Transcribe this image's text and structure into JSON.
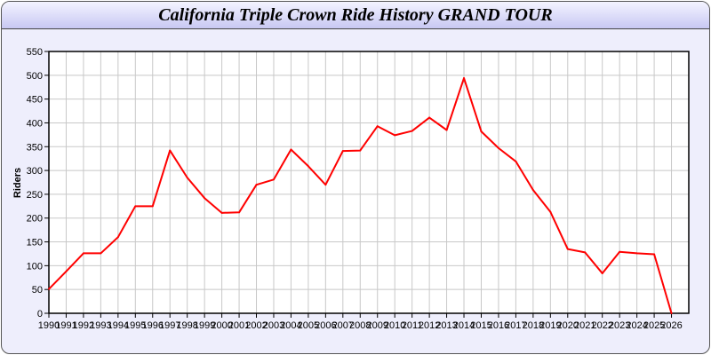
{
  "chart_data": {
    "type": "line",
    "title": "California Triple Crown Ride History GRAND TOUR",
    "xlabel": "",
    "ylabel": "Riders",
    "xlim": [
      1990,
      2027
    ],
    "ylim": [
      0,
      550
    ],
    "grid": true,
    "yticks": [
      0,
      50,
      100,
      150,
      200,
      250,
      300,
      350,
      400,
      450,
      500,
      550
    ],
    "x": [
      1990,
      1991,
      1992,
      1993,
      1994,
      1995,
      1996,
      1997,
      1998,
      1999,
      2000,
      2001,
      2002,
      2003,
      2004,
      2005,
      2006,
      2007,
      2008,
      2009,
      2010,
      2011,
      2012,
      2013,
      2014,
      2015,
      2016,
      2017,
      2018,
      2019,
      2020,
      2021,
      2022,
      2023,
      2024,
      2025,
      2026
    ],
    "series": [
      {
        "color": "#ff0000",
        "values": [
          51,
          88,
          126,
          126,
          160,
          225,
          225,
          342,
          285,
          242,
          211,
          212,
          270,
          281,
          344,
          309,
          270,
          341,
          342,
          393,
          374,
          383,
          411,
          385,
          494,
          382,
          347,
          319,
          259,
          213,
          135,
          128,
          84,
          129,
          126,
          124,
          0
        ]
      }
    ]
  }
}
